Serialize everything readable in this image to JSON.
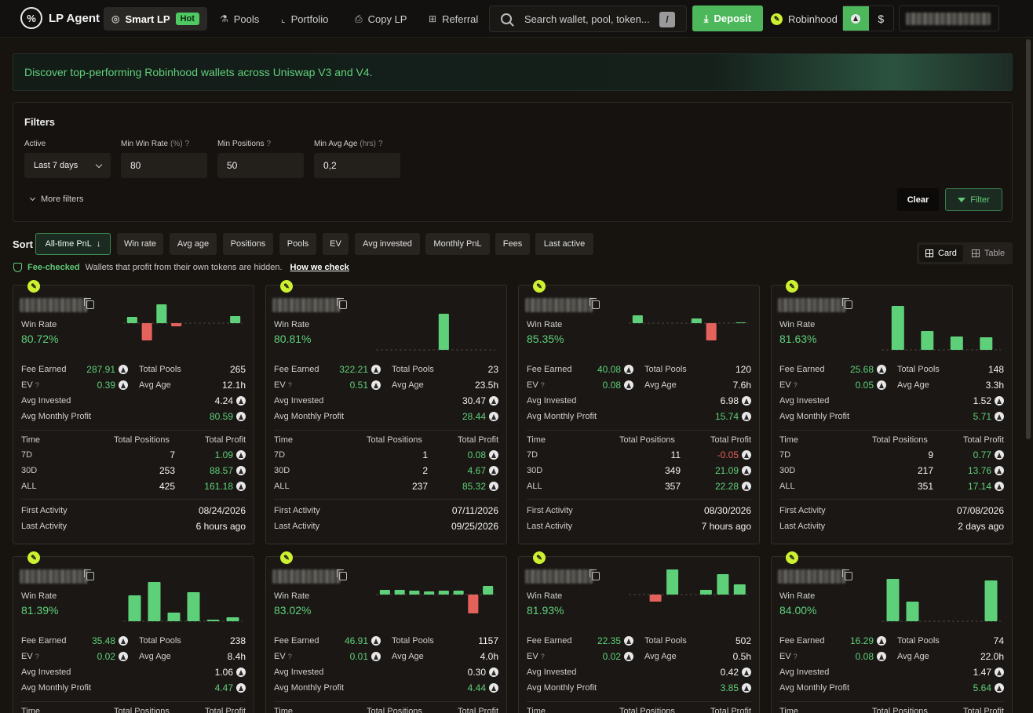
{
  "nav": {
    "brand": "LP Agent",
    "items": [
      {
        "label": "Smart LP",
        "icon": "brain-icon",
        "badge": "Hot",
        "active": true
      },
      {
        "label": "Pools",
        "icon": "flask-icon"
      },
      {
        "label": "Portfolio",
        "icon": "chart-icon"
      },
      {
        "label": "Copy LP",
        "icon": "printer-icon"
      },
      {
        "label": "Referral",
        "icon": "gift-icon"
      }
    ],
    "search_placeholder": "Search wallet, pool, token...",
    "search_shortcut": "/",
    "deposit_label": "Deposit",
    "chain_label": "Robinhood",
    "currency_usd": "$"
  },
  "banner": {
    "text": "Discover top-performing Robinhood wallets across Uniswap V3 and V4."
  },
  "filters": {
    "title": "Filters",
    "active_label": "Active",
    "active_value": "Last 7 days",
    "min_win_rate_label": "Min Win Rate",
    "min_win_rate_unit": "(%)",
    "min_win_rate_value": "80",
    "min_positions_label": "Min Positions",
    "min_positions_value": "50",
    "min_avg_age_label": "Min Avg Age",
    "min_avg_age_unit": "(hrs)",
    "min_avg_age_value": "0,2",
    "help": "?",
    "more_filters": "More filters",
    "clear": "Clear",
    "filter": "Filter"
  },
  "sort": {
    "label": "Sort",
    "options": [
      "All-time PnL",
      "Win rate",
      "Avg age",
      "Positions",
      "Pools",
      "EV",
      "Avg invested",
      "Monthly PnL",
      "Fees",
      "Last active"
    ],
    "active_arrow": "↓"
  },
  "view": {
    "card": "Card",
    "table": "Table"
  },
  "fee_check": {
    "label": "Fee-checked",
    "text": "Wallets that profit from their own tokens are hidden.",
    "link": "How we check"
  },
  "labels": {
    "win_rate": "Win Rate",
    "fee_earned": "Fee Earned",
    "total_pools": "Total Pools",
    "ev": "EV",
    "avg_age": "Avg Age",
    "avg_invested": "Avg Invested",
    "avg_monthly_profit": "Avg Monthly Profit",
    "time": "Time",
    "total_positions": "Total Positions",
    "total_profit": "Total Profit",
    "first_activity": "First Activity",
    "last_activity": "Last Activity",
    "q": "?"
  },
  "cards": [
    {
      "win_rate": "80.72%",
      "fee": "287.91",
      "pools": "265",
      "ev": "0.39",
      "age": "12.1h",
      "invested": "4.24",
      "monthly": "80.59",
      "periods": [
        {
          "t": "7D",
          "pos": "7",
          "profit": "1.09"
        },
        {
          "t": "30D",
          "pos": "253",
          "profit": "88.57"
        },
        {
          "t": "ALL",
          "pos": "425",
          "profit": "161.18"
        }
      ],
      "first": "08/24/2026",
      "last": "6 hours ago",
      "bars": [
        8,
        -22,
        24,
        -4,
        0,
        0,
        0,
        9
      ]
    },
    {
      "win_rate": "80.81%",
      "fee": "322.21",
      "pools": "23",
      "ev": "0.51",
      "age": "23.5h",
      "invested": "30.47",
      "monthly": "28.44",
      "periods": [
        {
          "t": "7D",
          "pos": "1",
          "profit": "0.08"
        },
        {
          "t": "30D",
          "pos": "2",
          "profit": "4.67"
        },
        {
          "t": "ALL",
          "pos": "237",
          "profit": "85.32"
        }
      ],
      "first": "07/11/2026",
      "last": "09/25/2026",
      "bars": [
        0,
        0,
        0,
        0,
        46,
        0,
        0,
        0
      ]
    },
    {
      "win_rate": "85.35%",
      "fee": "40.08",
      "pools": "120",
      "ev": "0.08",
      "age": "7.6h",
      "invested": "6.98",
      "monthly": "15.74",
      "periods": [
        {
          "t": "7D",
          "pos": "11",
          "profit": "-0.05"
        },
        {
          "t": "30D",
          "pos": "349",
          "profit": "21.09"
        },
        {
          "t": "ALL",
          "pos": "357",
          "profit": "22.28"
        }
      ],
      "first": "08/30/2026",
      "last": "7 hours ago",
      "bars": [
        10,
        0,
        0,
        0,
        6,
        -22,
        0,
        1
      ]
    },
    {
      "win_rate": "81.63%",
      "fee": "25.68",
      "pools": "148",
      "ev": "0.05",
      "age": "3.3h",
      "invested": "1.52",
      "monthly": "5.71",
      "periods": [
        {
          "t": "7D",
          "pos": "9",
          "profit": "0.77"
        },
        {
          "t": "30D",
          "pos": "217",
          "profit": "13.76"
        },
        {
          "t": "ALL",
          "pos": "351",
          "profit": "17.14"
        }
      ],
      "first": "07/08/2026",
      "last": "2 days ago",
      "bars": [
        56,
        24,
        17,
        16
      ]
    },
    {
      "win_rate": "81.39%",
      "fee": "35.48",
      "pools": "238",
      "ev": "0.02",
      "age": "8.4h",
      "invested": "1.06",
      "monthly": "4.47",
      "periods": [],
      "first": "",
      "last": "",
      "bars": [
        33,
        50,
        11,
        37,
        2,
        5
      ]
    },
    {
      "win_rate": "83.02%",
      "fee": "46.91",
      "pools": "1157",
      "ev": "0.01",
      "age": "4.0h",
      "invested": "0.30",
      "monthly": "4.44",
      "periods": [],
      "first": "",
      "last": "",
      "bars": [
        6,
        6,
        5,
        4,
        5,
        5,
        -24,
        11
      ]
    },
    {
      "win_rate": "81.93%",
      "fee": "22.35",
      "pools": "502",
      "ev": "0.02",
      "age": "0.5h",
      "invested": "0.42",
      "monthly": "3.85",
      "periods": [],
      "first": "",
      "last": "",
      "bars": [
        0,
        -9,
        33,
        0,
        6,
        26,
        13
      ]
    },
    {
      "win_rate": "84.00%",
      "fee": "16.29",
      "pools": "74",
      "ev": "0.08",
      "age": "22.0h",
      "invested": "1.47",
      "monthly": "5.64",
      "periods": [],
      "first": "",
      "last": "",
      "bars": [
        54,
        25,
        0,
        0,
        0,
        52
      ]
    }
  ],
  "colors": {
    "accent": "#4db85b",
    "positive": "#5fd07a",
    "negative": "#e4615c",
    "chain": "#cdf130"
  }
}
